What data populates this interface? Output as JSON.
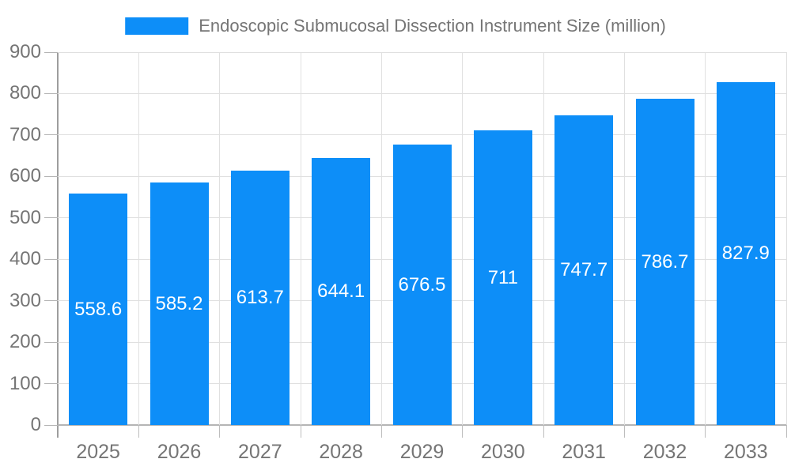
{
  "chart_data": {
    "type": "bar",
    "title": "Endoscopic Submucosal Dissection Instrument Size (million)",
    "categories": [
      "2025",
      "2026",
      "2027",
      "2028",
      "2029",
      "2030",
      "2031",
      "2032",
      "2033"
    ],
    "values": [
      558.6,
      585.2,
      613.7,
      644.1,
      676.5,
      711,
      747.7,
      786.7,
      827.9
    ],
    "value_labels": [
      "558.6",
      "585.2",
      "613.7",
      "644.1",
      "676.5",
      "711",
      "747.7",
      "786.7",
      "827.9"
    ],
    "xlabel": "",
    "ylabel": "",
    "ylim": [
      0,
      900
    ],
    "y_ticks": [
      0,
      100,
      200,
      300,
      400,
      500,
      600,
      700,
      800,
      900
    ],
    "grid": true,
    "legend_position": "top-center",
    "colors": {
      "bar": "#0d8ef8",
      "value_label_text": "#ffffff",
      "axis_text": "#757575",
      "legend_text": "#757575",
      "gridline": "#e0e0e0",
      "axis_line": "#9e9e9e"
    }
  }
}
